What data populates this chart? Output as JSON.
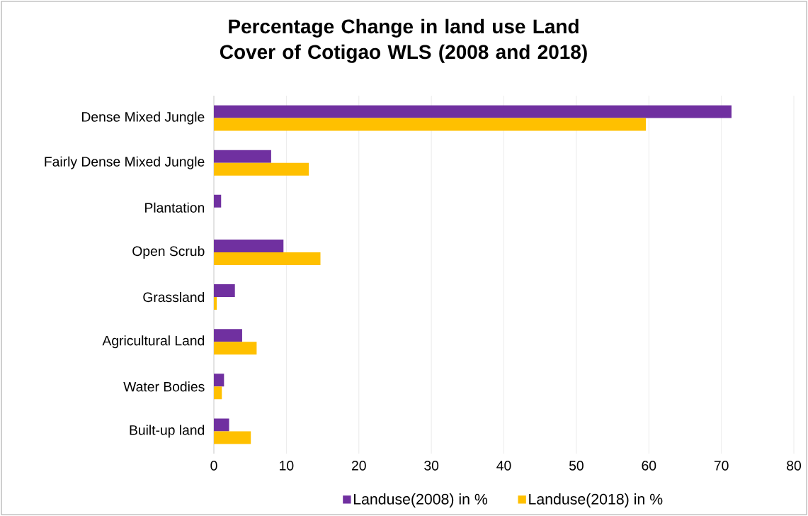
{
  "chart_data": {
    "type": "bar",
    "orientation": "horizontal",
    "title": "Percentage Change in land use Land Cover of Cotigao WLS (2008 and 2018)",
    "categories": [
      "Dense Mixed Jungle",
      "Fairly Dense Mixed Jungle",
      "Plantation",
      "Open Scrub",
      "Grassland",
      "Agricultural Land",
      "Water Bodies",
      "Built-up land"
    ],
    "series": [
      {
        "name": "Landuse(2008) in %",
        "color": "#7030a0",
        "values": [
          71.4,
          7.9,
          1.0,
          9.6,
          2.9,
          3.9,
          1.4,
          2.1
        ]
      },
      {
        "name": "Landuse(2018) in %",
        "color": "#ffc000",
        "values": [
          59.6,
          13.1,
          0,
          14.7,
          0.4,
          5.9,
          1.1,
          5.1
        ]
      }
    ],
    "xlim": [
      0,
      80
    ],
    "xticks": [
      0,
      10,
      20,
      30,
      40,
      50,
      60,
      70,
      80
    ],
    "grid": "x",
    "legend": "bottom"
  }
}
